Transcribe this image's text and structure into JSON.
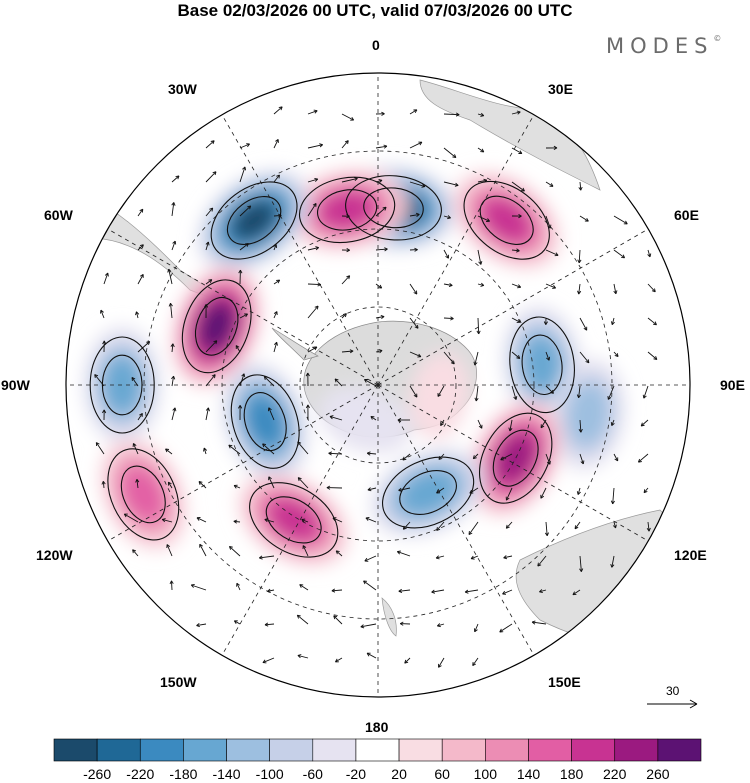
{
  "title": "Base 02/03/2026 00 UTC, valid 07/03/2026 00 UTC",
  "logo": "MODES",
  "logo_mark": "©",
  "longitudes": {
    "lon_0": "0",
    "lon_30e": "30E",
    "lon_60e": "60E",
    "lon_90e": "90E",
    "lon_120e": "120E",
    "lon_150e": "150E",
    "lon_180": "180",
    "lon_150w": "150W",
    "lon_120w": "120W",
    "lon_90w": "90W",
    "lon_60w": "60W",
    "lon_30w": "30W"
  },
  "reference_vector": "30",
  "colorbar": {
    "colors": [
      "#1b4a6b",
      "#1f6896",
      "#3b8ac0",
      "#67a7d2",
      "#9dbfe0",
      "#c6d0e8",
      "#e6e3f1",
      "#ffffff",
      "#f9dde3",
      "#f4b9ca",
      "#ec8db4",
      "#e25ea4",
      "#c83392",
      "#9b1a80",
      "#5c1273"
    ],
    "labels": [
      "-260",
      "-220",
      "-180",
      "-140",
      "-100",
      "-60",
      "-20",
      "20",
      "60",
      "100",
      "140",
      "180",
      "220",
      "260"
    ]
  },
  "anomalies": [
    {
      "lon": 5,
      "r": 0.57,
      "value": -280
    },
    {
      "lon": -10,
      "r": 0.57,
      "value": 200
    },
    {
      "lon": 38,
      "r": 0.67,
      "value": 190
    },
    {
      "lon": -37,
      "r": 0.66,
      "value": -260
    },
    {
      "lon": -70,
      "r": 0.55,
      "value": 280
    },
    {
      "lon": -90,
      "r": 0.82,
      "value": -140
    },
    {
      "lon": 83,
      "r": 0.53,
      "value": -150
    },
    {
      "lon": 98,
      "r": 0.68,
      "value": -110
    },
    {
      "lon": 118,
      "r": 0.5,
      "value": 240
    },
    {
      "lon": -108,
      "r": 0.38,
      "value": -190
    },
    {
      "lon": -115,
      "r": 0.83,
      "value": 160
    },
    {
      "lon": -148,
      "r": 0.51,
      "value": 190
    },
    {
      "lon": 155,
      "r": 0.38,
      "value": -170
    },
    {
      "lon": 100,
      "r": 0.2,
      "value": 40
    },
    {
      "lon": 200,
      "r": 0.12,
      "value": -30
    }
  ],
  "streams": [
    {
      "lon": 5,
      "r": 0.57,
      "dir": 1
    },
    {
      "lon": -10,
      "r": 0.57,
      "dir": -1
    },
    {
      "lon": 38,
      "r": 0.67,
      "dir": -1
    },
    {
      "lon": -37,
      "r": 0.66,
      "dir": 1
    },
    {
      "lon": -70,
      "r": 0.55,
      "dir": -1
    },
    {
      "lon": -90,
      "r": 0.82,
      "dir": 1
    },
    {
      "lon": 83,
      "r": 0.53,
      "dir": 1
    },
    {
      "lon": 118,
      "r": 0.5,
      "dir": -1
    },
    {
      "lon": -108,
      "r": 0.38,
      "dir": 1
    },
    {
      "lon": -115,
      "r": 0.83,
      "dir": -1
    },
    {
      "lon": -148,
      "r": 0.51,
      "dir": -1
    },
    {
      "lon": 155,
      "r": 0.38,
      "dir": 1
    }
  ]
}
